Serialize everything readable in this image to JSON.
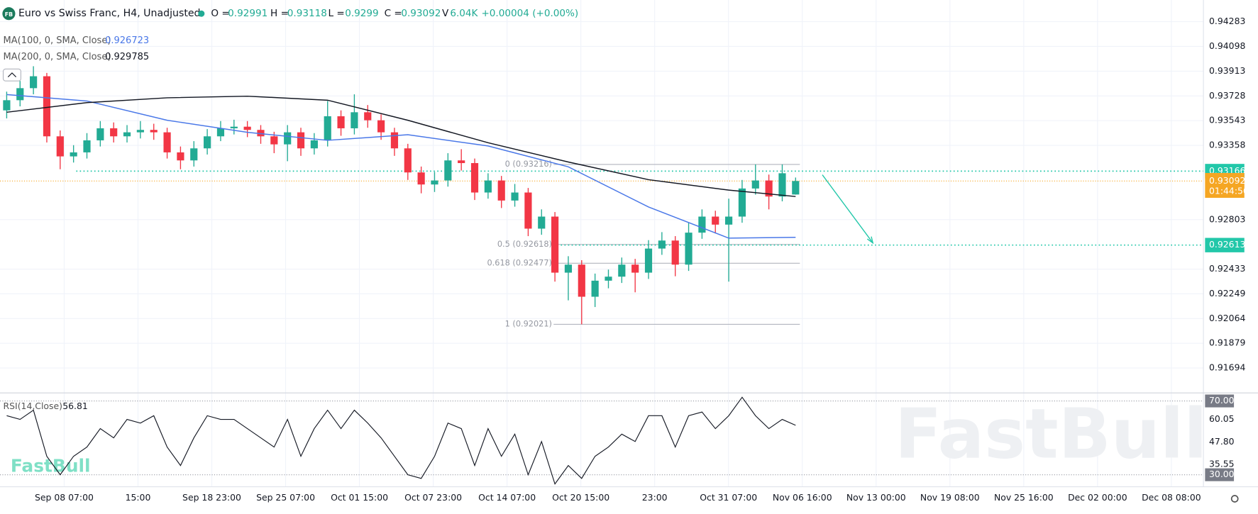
{
  "chart_data": [
    {
      "type": "candlestick",
      "title": "Euro vs Swiss Franc, H4, Unadjusted",
      "symbol_badge": "FB",
      "ohlc_legend": [
        {
          "label": "O =",
          "value": 0.92991
        },
        {
          "label": "H =",
          "value": 0.93118
        },
        {
          "label": "L =",
          "value": 0.9299
        },
        {
          "label": "C =",
          "value": 0.93092
        },
        {
          "label": "V",
          "value": 6040,
          "value_label": "6.04K"
        }
      ],
      "change": "+0.00004 (+0.00%)",
      "up_color": "#22ab94",
      "down_color": "#f23645",
      "open": [
        0.9362,
        0.93696,
        0.93786,
        0.93875,
        0.93426,
        0.93276,
        0.93306,
        0.93396,
        0.93486,
        0.93426,
        0.93456,
        0.93474,
        0.93456,
        0.93306,
        0.93246,
        0.93336,
        0.93426,
        0.93486,
        0.93498,
        0.93474,
        0.93426,
        0.93366,
        0.93456,
        0.93336,
        0.93396,
        0.93576,
        0.93486,
        0.93606,
        0.93546,
        0.93456,
        0.93336,
        0.93156,
        0.93066,
        0.93096,
        0.93246,
        0.93226,
        0.93006,
        0.93096,
        0.92946,
        0.93006,
        0.92736,
        0.92826,
        0.92407,
        0.92467,
        0.92227,
        0.92347,
        0.92377,
        0.92467,
        0.92407,
        0.92587,
        0.92647,
        0.92467,
        0.92706,
        0.92826,
        0.92766,
        0.92826,
        0.93036,
        0.93096,
        0.92976,
        0.92991
      ],
      "high": [
        0.9376,
        0.9384,
        0.9395,
        0.939,
        0.9347,
        0.9336,
        0.9345,
        0.9354,
        0.9353,
        0.9351,
        0.9354,
        0.9352,
        0.9349,
        0.9335,
        0.9339,
        0.9348,
        0.9354,
        0.9355,
        0.9354,
        0.9351,
        0.9346,
        0.9351,
        0.9349,
        0.9345,
        0.9369,
        0.9362,
        0.9374,
        0.9366,
        0.9359,
        0.9349,
        0.9337,
        0.932,
        0.9316,
        0.933,
        0.9333,
        0.9326,
        0.9315,
        0.9313,
        0.9307,
        0.9304,
        0.9288,
        0.9286,
        0.9253,
        0.925,
        0.924,
        0.9243,
        0.9252,
        0.9251,
        0.9265,
        0.9271,
        0.9268,
        0.9278,
        0.9288,
        0.9287,
        0.9296,
        0.931,
        0.93216,
        0.9314,
        0.93216,
        0.93118
      ],
      "low": [
        0.9356,
        0.9365,
        0.9374,
        0.9338,
        0.9318,
        0.9323,
        0.9326,
        0.9335,
        0.9338,
        0.9338,
        0.9341,
        0.934,
        0.9326,
        0.9318,
        0.932,
        0.9329,
        0.9339,
        0.9344,
        0.9342,
        0.9337,
        0.933,
        0.9324,
        0.9328,
        0.9329,
        0.9335,
        0.9343,
        0.9344,
        0.9349,
        0.934,
        0.9328,
        0.931,
        0.93,
        0.9301,
        0.9305,
        0.9317,
        0.9295,
        0.9296,
        0.9289,
        0.929,
        0.9268,
        0.9269,
        0.9234,
        0.922,
        0.92021,
        0.9215,
        0.9229,
        0.9233,
        0.9226,
        0.9236,
        0.9254,
        0.9238,
        0.9242,
        0.9266,
        0.927,
        0.9234,
        0.9278,
        0.9299,
        0.9288,
        0.9294,
        0.9299
      ],
      "close": [
        0.93696,
        0.93786,
        0.93875,
        0.93426,
        0.93276,
        0.93306,
        0.93396,
        0.93486,
        0.93426,
        0.93456,
        0.93474,
        0.93456,
        0.93306,
        0.93246,
        0.93336,
        0.93426,
        0.93486,
        0.93498,
        0.93474,
        0.93426,
        0.93366,
        0.93456,
        0.93336,
        0.93396,
        0.93576,
        0.93486,
        0.93606,
        0.93546,
        0.93456,
        0.93336,
        0.93156,
        0.93066,
        0.93096,
        0.93246,
        0.93226,
        0.93006,
        0.93096,
        0.92946,
        0.93006,
        0.92736,
        0.92826,
        0.92407,
        0.92467,
        0.92227,
        0.92347,
        0.92377,
        0.92467,
        0.92407,
        0.92587,
        0.92647,
        0.92467,
        0.92706,
        0.92826,
        0.92766,
        0.92826,
        0.93036,
        0.93096,
        0.92976,
        0.9315,
        0.93092
      ],
      "series": [
        {
          "name": "MA(100, 0, SMA, Close)",
          "color": "#4a78e8",
          "last_value": 0.926723,
          "x": [
            0.5,
            6.5,
            12.5,
            18.5,
            24.5,
            30.5,
            36.5,
            42.5,
            48.5,
            54.5,
            59.5
          ],
          "values": [
            0.93738,
            0.9369,
            0.93546,
            0.93456,
            0.93396,
            0.93438,
            0.93354,
            0.93198,
            0.92898,
            0.92665,
            0.92671
          ]
        },
        {
          "name": "MA(200, 0, SMA, Close)",
          "color": "#131722",
          "last_value": 0.929785,
          "x": [
            0.5,
            6.5,
            12.5,
            18.5,
            24.5,
            30.5,
            36.5,
            42.5,
            48.5,
            54.5,
            59.5
          ],
          "values": [
            0.93606,
            0.93678,
            0.93714,
            0.93726,
            0.93696,
            0.93546,
            0.93378,
            0.93234,
            0.93102,
            0.93024,
            0.92976
          ]
        }
      ],
      "fib": {
        "color": "#b2b5be",
        "levels": [
          {
            "label": "0 (0.93216)",
            "value": 0.93216
          },
          {
            "label": "0.5 (0.92618)",
            "value": 0.92618
          },
          {
            "label": "0.618 (0.92477)",
            "value": 0.92477
          },
          {
            "label": "1 (0.92021)",
            "value": 0.92021
          }
        ]
      },
      "levels": [
        {
          "value": 0.93166,
          "color": "#22c7a9"
        },
        {
          "value": 0.92613,
          "color": "#22c7a9"
        }
      ],
      "current_price": {
        "value": 0.93092,
        "countdown": "01:44:56",
        "color": "#f5a623"
      },
      "xlim": [
        0,
        90
      ],
      "xticks": [
        {
          "value": 4.8,
          "label": "Sep 08 07:00"
        },
        {
          "value": 10.32,
          "label": "15:00"
        },
        {
          "value": 15.84,
          "label": "Sep 18 23:00"
        },
        {
          "value": 21.36,
          "label": "Sep 25 07:00"
        },
        {
          "value": 26.88,
          "label": "Oct 01 15:00"
        },
        {
          "value": 32.4,
          "label": "Oct 07 23:00"
        },
        {
          "value": 37.92,
          "label": "Oct 14 07:00"
        },
        {
          "value": 43.44,
          "label": "Oct 20 15:00"
        },
        {
          "value": 48.96,
          "label": "23:00"
        },
        {
          "value": 54.48,
          "label": "Oct 31 07:00"
        },
        {
          "value": 60,
          "label": "Nov 06 16:00"
        },
        {
          "value": 65.52,
          "label": "Nov 13 00:00"
        },
        {
          "value": 71.04,
          "label": "Nov 19 08:00"
        },
        {
          "value": 76.56,
          "label": "Nov 25 16:00"
        },
        {
          "value": 82.08,
          "label": "Dec 02 00:00"
        },
        {
          "value": 87.6,
          "label": "Dec 08 08:00"
        }
      ],
      "ylim": [
        0.91508,
        0.94445
      ],
      "yticks": [
        0.94283,
        0.94098,
        0.93913,
        0.93728,
        0.93543,
        0.93358,
        0.92803,
        0.92433,
        0.92249,
        0.92064,
        0.91879,
        0.91694
      ],
      "grid": true,
      "watermark": "FastBull",
      "logo": "FastBull"
    },
    {
      "type": "line",
      "name": "RSI(14,Close)",
      "last_value": 56.81,
      "color": "#131722",
      "values": [
        62,
        60,
        65,
        40,
        30,
        40,
        45,
        55,
        50,
        60,
        58,
        62,
        45,
        35,
        50,
        62,
        60,
        60,
        55,
        50,
        45,
        60,
        40,
        55,
        65,
        55,
        65,
        58,
        50,
        40,
        30,
        28,
        40,
        58,
        55,
        35,
        55,
        40,
        52,
        30,
        48,
        25,
        35,
        28,
        40,
        45,
        52,
        48,
        62,
        62,
        45,
        62,
        64,
        55,
        62,
        72,
        62,
        55,
        60,
        56.81
      ],
      "ylim": [
        23.5,
        74.35
      ],
      "yticks": [
        {
          "value": 70,
          "label": "70.00",
          "boxed": true
        },
        {
          "value": 60.05,
          "label": "60.05"
        },
        {
          "value": 47.8,
          "label": "47.80"
        },
        {
          "value": 35.55,
          "label": "35.55"
        },
        {
          "value": 30,
          "label": "30.00",
          "boxed": true
        }
      ]
    }
  ]
}
